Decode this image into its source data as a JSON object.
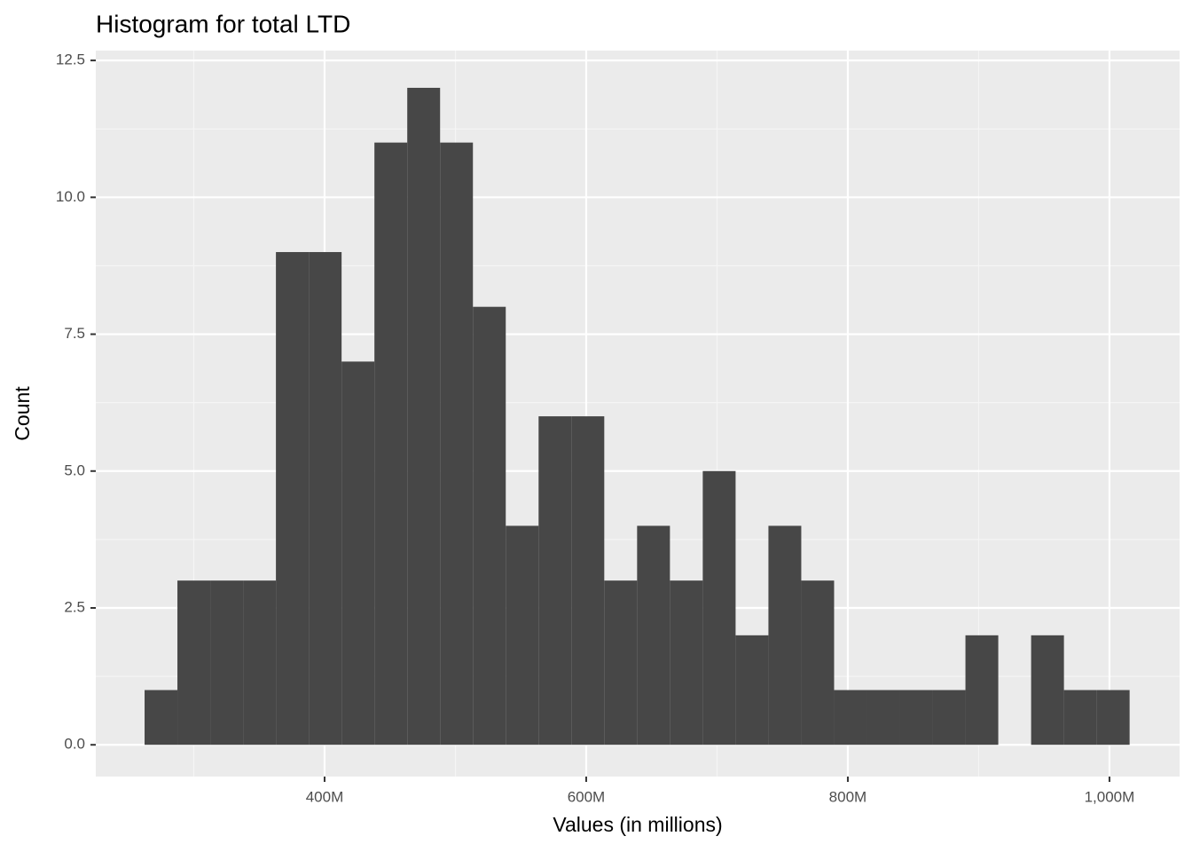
{
  "chart_data": {
    "type": "histogram",
    "title": "Histogram for total LTD",
    "x_label": "Values (in millions)",
    "y_label": "Count",
    "bins": [
      262.4,
      287.5,
      312.6,
      337.7,
      362.8,
      387.9,
      413.0,
      438.1,
      463.2,
      488.3,
      513.4,
      538.5,
      563.6,
      588.7,
      613.8,
      638.9,
      664.0,
      689.1,
      714.2,
      739.3,
      764.4,
      789.5,
      814.6,
      839.7,
      864.8,
      889.9,
      915.0,
      940.1,
      965.2,
      990.3,
      1015.4
    ],
    "values": [
      1,
      3,
      3,
      3,
      9,
      9,
      7,
      11,
      12,
      11,
      8,
      4,
      6,
      6,
      3,
      4,
      3,
      5,
      2,
      4,
      3,
      1,
      1,
      1,
      1,
      2,
      0,
      2,
      1,
      1
    ],
    "color": "#474747",
    "xlim": [
      225.1,
      1053.6
    ],
    "ylim": [
      -0.58,
      12.68
    ],
    "xticks": [
      {
        "value": 400,
        "label": "400M"
      },
      {
        "value": 600,
        "label": "600M"
      },
      {
        "value": 800,
        "label": "800M"
      },
      {
        "value": 1000,
        "label": "1,000M"
      }
    ],
    "yticks": [
      {
        "value": 0,
        "label": "0.0"
      },
      {
        "value": 2.5,
        "label": "2.5"
      },
      {
        "value": 5,
        "label": "5.0"
      },
      {
        "value": 7.5,
        "label": "7.5"
      },
      {
        "value": 10,
        "label": "10.0"
      },
      {
        "value": 12.5,
        "label": "12.5"
      }
    ],
    "grid": true
  }
}
